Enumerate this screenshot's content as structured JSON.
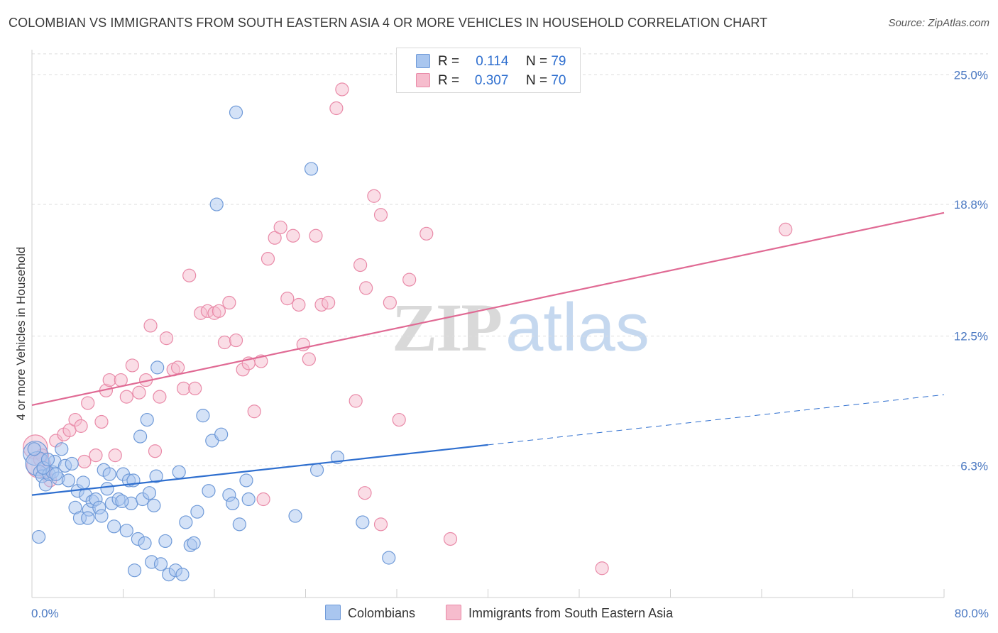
{
  "title": "COLOMBIAN VS IMMIGRANTS FROM SOUTH EASTERN ASIA 4 OR MORE VEHICLES IN HOUSEHOLD CORRELATION CHART",
  "source": "Source: ZipAtlas.com",
  "watermark": {
    "zip": "ZIP",
    "atlas": "atlas"
  },
  "legend": {
    "r_label": "R =",
    "n_label": "N =",
    "series": [
      {
        "name": "Colombians",
        "r": "0.114",
        "n": "79"
      },
      {
        "name": "Immigrants from South Eastern Asia",
        "r": "0.307",
        "n": "70"
      }
    ]
  },
  "colors": {
    "blue_fill": "#a9c6ef",
    "blue_stroke": "#6f9ad8",
    "blue_line": "#2f6fcf",
    "pink_fill": "#f6bccd",
    "pink_stroke": "#e98aa8",
    "pink_line": "#e06a94",
    "grid": "#dddddd",
    "axis_text": "#4a78c2"
  },
  "chart_data": {
    "type": "scatter",
    "title": "COLOMBIAN VS IMMIGRANTS FROM SOUTH EASTERN ASIA 4 OR MORE VEHICLES IN HOUSEHOLD CORRELATION CHART",
    "xlabel": "",
    "ylabel": "4 or more Vehicles in Household",
    "xlim": [
      0,
      80
    ],
    "ylim": [
      0,
      26.2
    ],
    "x_tick_labels": [
      "0.0%",
      "80.0%"
    ],
    "y_ticks": [
      6.3,
      12.5,
      18.8,
      25.0
    ],
    "y_tick_labels": [
      "6.3%",
      "12.5%",
      "18.8%",
      "25.0%"
    ],
    "grid": true,
    "legend_position": "top-center",
    "series": [
      {
        "name": "Colombians",
        "trend": {
          "x0": 0,
          "y0": 4.9,
          "x1": 40,
          "y1": 7.3,
          "dashed_to_x": 80,
          "dashed_to_y": 9.7
        },
        "points": [
          [
            0.3,
            6.9
          ],
          [
            0.5,
            6.4
          ],
          [
            0.7,
            6.0
          ],
          [
            0.9,
            5.8
          ],
          [
            1.2,
            5.4
          ],
          [
            1.5,
            5.9
          ],
          [
            1.8,
            6.0
          ],
          [
            2.0,
            6.5
          ],
          [
            2.3,
            5.7
          ],
          [
            2.6,
            7.1
          ],
          [
            2.9,
            6.3
          ],
          [
            3.2,
            5.6
          ],
          [
            3.5,
            6.4
          ],
          [
            3.8,
            4.3
          ],
          [
            4.0,
            5.1
          ],
          [
            4.2,
            3.8
          ],
          [
            4.5,
            5.5
          ],
          [
            4.7,
            4.9
          ],
          [
            5.0,
            4.2
          ],
          [
            5.3,
            4.6
          ],
          [
            5.6,
            4.7
          ],
          [
            5.9,
            4.3
          ],
          [
            6.1,
            3.9
          ],
          [
            6.3,
            6.1
          ],
          [
            6.6,
            5.2
          ],
          [
            6.8,
            5.9
          ],
          [
            7.0,
            4.5
          ],
          [
            7.2,
            3.4
          ],
          [
            7.6,
            4.7
          ],
          [
            8.0,
            5.9
          ],
          [
            8.3,
            3.2
          ],
          [
            8.5,
            5.6
          ],
          [
            8.7,
            4.5
          ],
          [
            8.9,
            5.6
          ],
          [
            9.0,
            1.3
          ],
          [
            9.3,
            2.8
          ],
          [
            9.5,
            7.7
          ],
          [
            9.7,
            4.7
          ],
          [
            9.9,
            2.6
          ],
          [
            10.1,
            8.5
          ],
          [
            10.3,
            5.0
          ],
          [
            10.5,
            1.7
          ],
          [
            10.7,
            4.4
          ],
          [
            11.0,
            11.0
          ],
          [
            11.3,
            1.6
          ],
          [
            11.7,
            2.7
          ],
          [
            12.0,
            1.1
          ],
          [
            12.6,
            1.3
          ],
          [
            12.9,
            6.0
          ],
          [
            13.2,
            1.1
          ],
          [
            13.5,
            3.6
          ],
          [
            13.9,
            2.5
          ],
          [
            14.2,
            2.6
          ],
          [
            14.5,
            4.1
          ],
          [
            15.0,
            8.7
          ],
          [
            15.5,
            5.1
          ],
          [
            15.8,
            7.5
          ],
          [
            16.2,
            18.8
          ],
          [
            16.6,
            7.8
          ],
          [
            17.3,
            4.9
          ],
          [
            17.6,
            4.5
          ],
          [
            17.9,
            23.2
          ],
          [
            18.2,
            3.5
          ],
          [
            18.8,
            5.6
          ],
          [
            19.0,
            4.7
          ],
          [
            23.1,
            3.9
          ],
          [
            24.5,
            20.5
          ],
          [
            25.0,
            6.1
          ],
          [
            26.8,
            6.7
          ],
          [
            29.0,
            3.6
          ],
          [
            31.3,
            1.9
          ],
          [
            0.6,
            2.9
          ],
          [
            1.0,
            6.2
          ],
          [
            1.4,
            6.6
          ],
          [
            2.1,
            5.9
          ],
          [
            4.9,
            3.8
          ],
          [
            7.9,
            4.6
          ],
          [
            10.9,
            5.8
          ],
          [
            0.2,
            7.1
          ]
        ]
      },
      {
        "name": "Immigrants from South Eastern Asia",
        "trend": {
          "x0": 0,
          "y0": 9.2,
          "x1": 80,
          "y1": 18.4
        },
        "points": [
          [
            0.3,
            7.2
          ],
          [
            0.6,
            6.3
          ],
          [
            0.9,
            6.8
          ],
          [
            1.2,
            6.0
          ],
          [
            1.6,
            5.6
          ],
          [
            2.1,
            7.5
          ],
          [
            2.8,
            7.8
          ],
          [
            3.3,
            8.0
          ],
          [
            3.8,
            8.5
          ],
          [
            4.3,
            8.2
          ],
          [
            4.9,
            9.3
          ],
          [
            5.6,
            6.8
          ],
          [
            6.1,
            8.4
          ],
          [
            6.5,
            9.9
          ],
          [
            6.8,
            10.4
          ],
          [
            7.3,
            6.8
          ],
          [
            7.8,
            10.4
          ],
          [
            8.3,
            9.6
          ],
          [
            8.8,
            11.1
          ],
          [
            9.4,
            9.8
          ],
          [
            10.0,
            10.4
          ],
          [
            10.4,
            13.0
          ],
          [
            10.8,
            7.0
          ],
          [
            11.2,
            9.6
          ],
          [
            11.8,
            12.4
          ],
          [
            12.4,
            10.9
          ],
          [
            12.8,
            11.0
          ],
          [
            13.3,
            10.0
          ],
          [
            13.8,
            15.4
          ],
          [
            14.3,
            10.0
          ],
          [
            14.8,
            13.6
          ],
          [
            15.4,
            13.7
          ],
          [
            16.0,
            13.6
          ],
          [
            16.4,
            13.7
          ],
          [
            16.9,
            12.2
          ],
          [
            17.3,
            14.1
          ],
          [
            17.9,
            12.3
          ],
          [
            18.5,
            10.9
          ],
          [
            19.0,
            11.2
          ],
          [
            19.5,
            8.9
          ],
          [
            20.1,
            11.3
          ],
          [
            20.7,
            16.2
          ],
          [
            21.3,
            17.2
          ],
          [
            21.8,
            17.7
          ],
          [
            22.4,
            14.3
          ],
          [
            22.9,
            17.3
          ],
          [
            23.4,
            14.0
          ],
          [
            23.8,
            12.1
          ],
          [
            24.3,
            11.4
          ],
          [
            24.9,
            17.3
          ],
          [
            25.4,
            14.0
          ],
          [
            26.0,
            14.1
          ],
          [
            26.7,
            23.4
          ],
          [
            27.2,
            24.3
          ],
          [
            28.4,
            9.4
          ],
          [
            28.8,
            15.9
          ],
          [
            29.3,
            14.8
          ],
          [
            30.0,
            19.2
          ],
          [
            30.6,
            18.3
          ],
          [
            31.4,
            14.1
          ],
          [
            32.2,
            8.5
          ],
          [
            33.1,
            15.2
          ],
          [
            34.6,
            17.4
          ],
          [
            0.7,
            6.6
          ],
          [
            4.6,
            6.5
          ],
          [
            20.3,
            4.7
          ],
          [
            29.2,
            5.0
          ],
          [
            30.6,
            3.5
          ],
          [
            36.7,
            2.8
          ],
          [
            50.0,
            1.4
          ],
          [
            66.1,
            17.6
          ]
        ]
      }
    ]
  }
}
